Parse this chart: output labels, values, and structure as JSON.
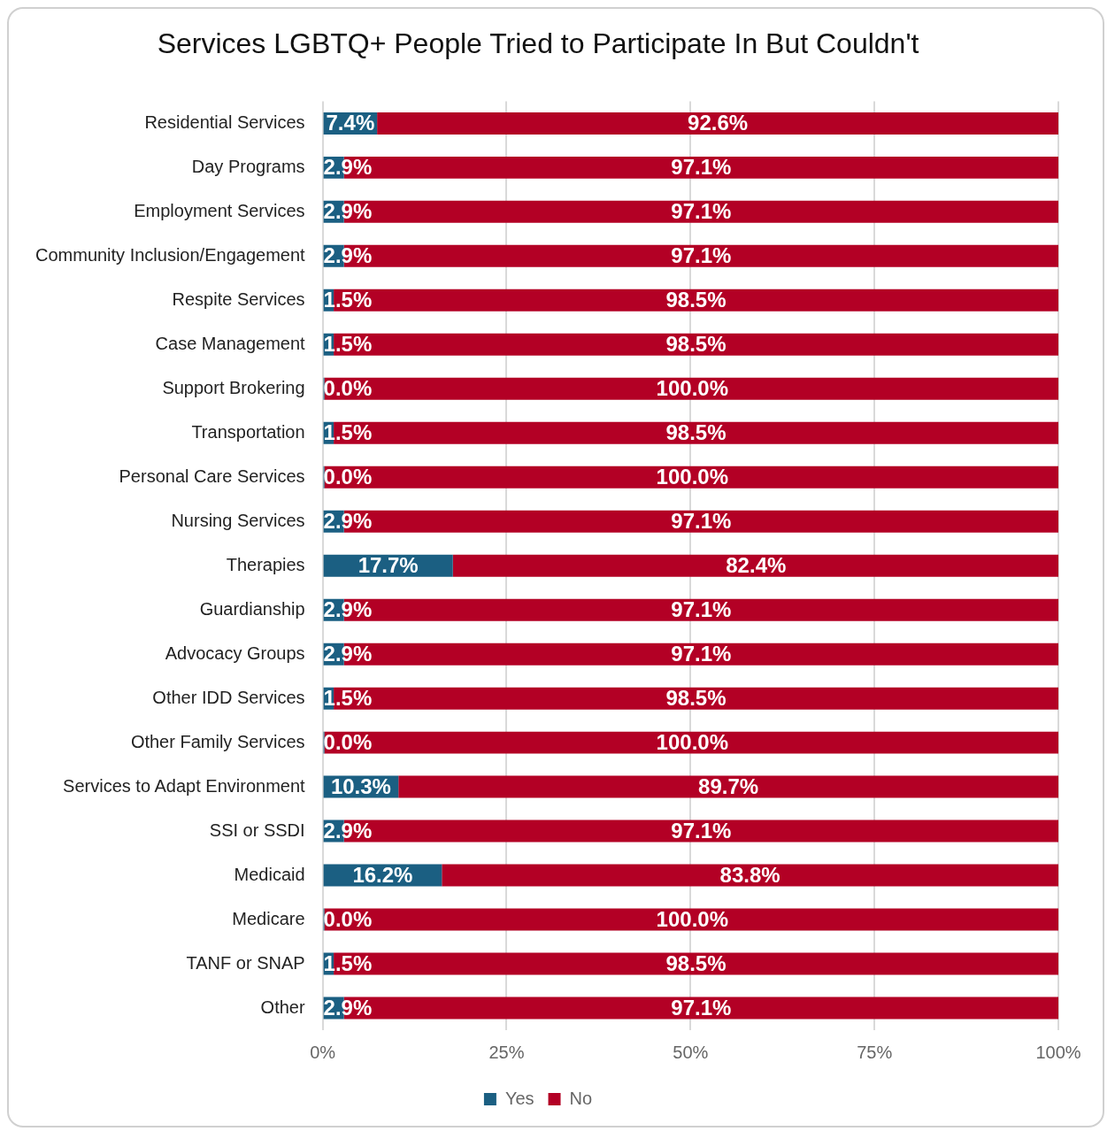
{
  "chart_data": {
    "type": "bar",
    "orientation": "horizontal",
    "stacked": true,
    "title": "Services LGBTQ+ People Tried to Participate In But Couldn't",
    "categories": [
      "Residential Services",
      "Day Programs",
      "Employment Services",
      "Community Inclusion/Engagement",
      "Respite Services",
      "Case Management",
      "Support Brokering",
      "Transportation",
      "Personal Care Services",
      "Nursing Services",
      "Therapies",
      "Guardianship",
      "Advocacy Groups",
      "Other IDD Services",
      "Other Family Services",
      "Services to Adapt Environment",
      "SSI or SSDI",
      "Medicaid",
      "Medicare",
      "TANF or SNAP",
      "Other"
    ],
    "series": [
      {
        "name": "Yes",
        "color": "#1b5f82",
        "values": [
          7.4,
          2.9,
          2.9,
          2.9,
          1.5,
          1.5,
          0.0,
          1.5,
          0.0,
          2.9,
          17.7,
          2.9,
          2.9,
          1.5,
          0.0,
          10.3,
          2.9,
          16.2,
          0.0,
          1.5,
          2.9
        ],
        "value_labels": [
          "7.4%",
          "2.9%",
          "2.9%",
          "2.9%",
          "1.5%",
          "1.5%",
          "0.0%",
          "1.5%",
          "0.0%",
          "2.9%",
          "17.7%",
          "2.9%",
          "2.9%",
          "1.5%",
          "0.0%",
          "10.3%",
          "2.9%",
          "16.2%",
          "0.0%",
          "1.5%",
          "2.9%"
        ]
      },
      {
        "name": "No",
        "color": "#b30025",
        "values": [
          92.6,
          97.1,
          97.1,
          97.1,
          98.5,
          98.5,
          100.0,
          98.5,
          100.0,
          97.1,
          82.4,
          97.1,
          97.1,
          98.5,
          100.0,
          89.7,
          97.1,
          83.8,
          100.0,
          98.5,
          97.1
        ],
        "value_labels": [
          "92.6%",
          "97.1%",
          "97.1%",
          "97.1%",
          "98.5%",
          "98.5%",
          "100.0%",
          "98.5%",
          "100.0%",
          "97.1%",
          "82.4%",
          "97.1%",
          "97.1%",
          "98.5%",
          "100.0%",
          "89.7%",
          "97.1%",
          "83.8%",
          "100.0%",
          "98.5%",
          "97.1%"
        ]
      }
    ],
    "xlim": [
      0,
      100
    ],
    "xticks": [
      {
        "value": 0,
        "label": "0%"
      },
      {
        "value": 25,
        "label": "25%"
      },
      {
        "value": 50,
        "label": "50%"
      },
      {
        "value": 75,
        "label": "75%"
      },
      {
        "value": 100,
        "label": "100%"
      }
    ],
    "grid": "x",
    "legend": "bottom"
  }
}
